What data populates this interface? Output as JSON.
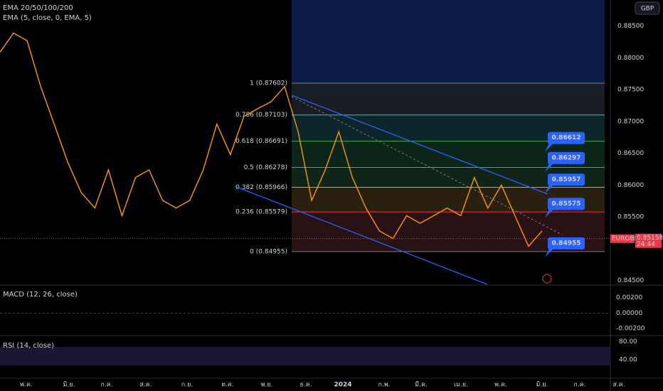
{
  "legend": {
    "ema_ribbon": "EMA 20/50/100/200",
    "ema": "EMA (5, close, 0, EMA, 5)",
    "macd": "MACD (12, 26, close)",
    "rsi": "RSI (14, close)"
  },
  "currency_button": "GBP",
  "price_axis": {
    "ticks": [
      {
        "value": 0.885,
        "label": "0.88500"
      },
      {
        "value": 0.88,
        "label": "0.88000"
      },
      {
        "value": 0.875,
        "label": "0.87500"
      },
      {
        "value": 0.87,
        "label": "0.87000"
      },
      {
        "value": 0.865,
        "label": "0.86500"
      },
      {
        "value": 0.86,
        "label": "0.86000"
      },
      {
        "value": 0.855,
        "label": "0.85500"
      },
      {
        "value": 0.845,
        "label": "0.84500"
      }
    ],
    "lim": [
      0.8891,
      0.8444
    ]
  },
  "current_price": {
    "symbol": "EURGBP",
    "value": 0.85158,
    "label": "0.85158",
    "countdown": "24:44"
  },
  "fib_levels": [
    {
      "value": 0.87602,
      "label": "1 (0.87602)",
      "color": "#787b86"
    },
    {
      "value": 0.87103,
      "label": "0.786 (0.87103)",
      "color": "#26c6da"
    },
    {
      "value": 0.86691,
      "label": "0.618 (0.86691)",
      "color": "#4caf50"
    },
    {
      "value": 0.86278,
      "label": "0.5 (0.86278)",
      "color": "#4caf50"
    },
    {
      "value": 0.85966,
      "label": "0.382 (0.85966)",
      "color": "#ff9800"
    },
    {
      "value": 0.85579,
      "label": "0.236 (0.85579)",
      "color": "#f23645"
    },
    {
      "value": 0.84955,
      "label": "0 (0.84955)",
      "color": "#787b86"
    }
  ],
  "callouts": [
    {
      "value": 0.86612,
      "label": "0.86612"
    },
    {
      "value": 0.86297,
      "label": "0.86297"
    },
    {
      "value": 0.85957,
      "label": "0.85957"
    },
    {
      "value": 0.85575,
      "label": "0.85575"
    },
    {
      "value": 0.84955,
      "label": "0.84955"
    }
  ],
  "closes": [
    0.8809,
    0.8839,
    0.8827,
    0.8755,
    0.8696,
    0.8636,
    0.8588,
    0.8564,
    0.8624,
    0.8552,
    0.8612,
    0.8624,
    0.8576,
    0.8564,
    0.8576,
    0.8624,
    0.8696,
    0.8648,
    0.8708,
    0.872,
    0.8731,
    0.8755,
    0.8684,
    0.8576,
    0.8624,
    0.8684,
    0.8612,
    0.8564,
    0.8528,
    0.8516,
    0.8552,
    0.854,
    0.8552,
    0.8564,
    0.8552,
    0.8612,
    0.8564,
    0.86,
    0.8552,
    0.8504,
    0.8528
  ],
  "macd_axis": {
    "ticks": [
      {
        "value": 0.002,
        "label": "0.00200"
      },
      {
        "value": 0,
        "label": "0.00000"
      },
      {
        "value": -0.002,
        "label": "-0.00200"
      }
    ],
    "lim": [
      0.0035,
      -0.0028
    ]
  },
  "rsi_axis": {
    "ticks": [
      {
        "value": 80,
        "label": "80.00"
      },
      {
        "value": 40,
        "label": "40.00"
      }
    ],
    "lim": [
      92,
      0
    ]
  },
  "time_axis": [
    "พ.ค.",
    "มิ.ย.",
    "ก.ค.",
    "ส.ค.",
    "ก.ย.",
    "ต.ค.",
    "พ.ย.",
    "ธ.ค.",
    "2024",
    "ก.พ.",
    "มี.ค.",
    "เม.ย.",
    "พ.ค.",
    "มิ.ย.",
    "ก.ค.",
    "ส.ค."
  ]
}
